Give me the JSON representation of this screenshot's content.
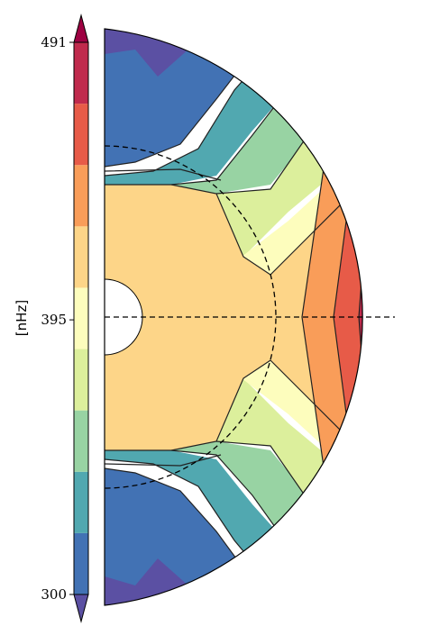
{
  "chart_data": {
    "type": "heatmap",
    "title": "",
    "colorbar": {
      "label": "[nHz]",
      "range": [
        300,
        491
      ],
      "ticks": [
        491,
        395,
        300
      ],
      "tick_labels": [
        "491",
        "395",
        "300"
      ],
      "levels": 9,
      "extend": "both",
      "colors": [
        "#5b50a3",
        "#4272b4",
        "#51a8b0",
        "#98d3a3",
        "#dcef9c",
        "#fdfdbd",
        "#fdd588",
        "#f99d59",
        "#e75b48",
        "#c02a4d",
        "#9e0142"
      ]
    },
    "domain": {
      "shape": "semicircle-meridional",
      "radius_range": [
        0.13,
        1.0
      ],
      "tachocline_radius": 0.59,
      "equator_dashed": true
    },
    "annotations": [
      "dashed equator line",
      "dashed tachocline circle"
    ]
  }
}
